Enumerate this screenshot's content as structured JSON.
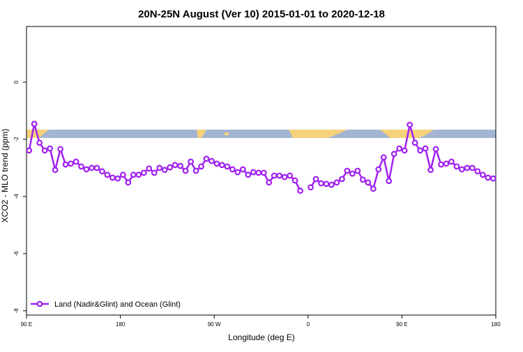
{
  "chart_data": {
    "type": "line",
    "title": "20N-25N August (Ver 10)   2015-01-01 to 2020-12-18",
    "x_label": "Longitude (deg E)",
    "y_label": "XCO2 - MLO trend (ppm)",
    "x": [
      92.5,
      97.5,
      102.5,
      107.5,
      112.5,
      117.5,
      122.5,
      127.5,
      132.5,
      137.5,
      142.5,
      147.5,
      152.5,
      157.5,
      162.5,
      167.5,
      172.5,
      177.5,
      182.5,
      187.5,
      192.5,
      197.5,
      202.5,
      207.5,
      212.5,
      217.5,
      222.5,
      227.5,
      232.5,
      237.5,
      242.5,
      247.5,
      252.5,
      257.5,
      262.5,
      267.5,
      272.5,
      277.5,
      282.5,
      287.5,
      292.5,
      297.5,
      302.5,
      307.5,
      312.5,
      317.5,
      322.5,
      327.5,
      332.5,
      337.5,
      342.5,
      347.5,
      352.5,
      357.5,
      362.5,
      367.5,
      372.5,
      377.5,
      382.5,
      387.5,
      392.5,
      397.5,
      402.5,
      407.5,
      412.5,
      417.5,
      422.5,
      427.5,
      432.5,
      437.5,
      442.5,
      447.5,
      452.5,
      457.5,
      462.5,
      467.5,
      472.5,
      477.5,
      482.5,
      487.5,
      492.5,
      497.5,
      502.5,
      507.5,
      512.5,
      517.5,
      522.5,
      527.5,
      532.5,
      537.5
    ],
    "series": [
      {
        "name": "Land (Nadir&Glint) and Ocean (Glint)",
        "color": "#a020f0",
        "values": [
          -2.39,
          -1.46,
          -2.12,
          -2.39,
          -2.32,
          -3.07,
          -2.34,
          -2.88,
          -2.85,
          -2.78,
          -2.95,
          -3.05,
          -3.0,
          -3.0,
          -3.12,
          -3.24,
          -3.34,
          -3.37,
          -3.24,
          -3.51,
          -3.24,
          -3.24,
          -3.17,
          -3.02,
          -3.17,
          -3.0,
          -3.07,
          -2.98,
          -2.9,
          -2.93,
          -3.1,
          -2.78,
          -3.1,
          -2.95,
          -2.68,
          -2.76,
          -2.85,
          -2.9,
          -2.95,
          -3.05,
          -3.15,
          -3.05,
          -3.24,
          -3.15,
          -3.17,
          -3.17,
          -3.51,
          -3.27,
          -3.27,
          -3.32,
          -3.27,
          -3.44,
          -3.8,
          null,
          -3.68,
          -3.39,
          -3.54,
          -3.56,
          -3.59,
          -3.51,
          -3.39,
          -3.1,
          -3.2,
          -3.1,
          -3.41,
          -3.51,
          -3.73,
          -3.05,
          -2.63,
          -3.46,
          -2.51,
          -2.32,
          -2.39,
          -1.49,
          -2.12,
          -2.39,
          -2.32,
          -3.07,
          -2.34,
          -2.88,
          -2.85,
          -2.78,
          -2.95,
          -3.05,
          -3.0,
          -3.0,
          -3.12,
          -3.24,
          -3.34,
          -3.37
        ]
      }
    ],
    "xlim": [
      90,
      540
    ],
    "xticks": [
      {
        "value": 90,
        "label": "90 E"
      },
      180,
      {
        "value": 270,
        "label": "90 W"
      },
      {
        "value": 360,
        "label": "0"
      },
      {
        "value": 450,
        "label": "90 E"
      },
      {
        "value": 540,
        "label": "180"
      }
    ],
    "ylim": [
      -8.15,
      1.95
    ],
    "yticks": [
      0,
      -2,
      -4,
      -6,
      -8
    ],
    "legend": "bottomleft"
  }
}
